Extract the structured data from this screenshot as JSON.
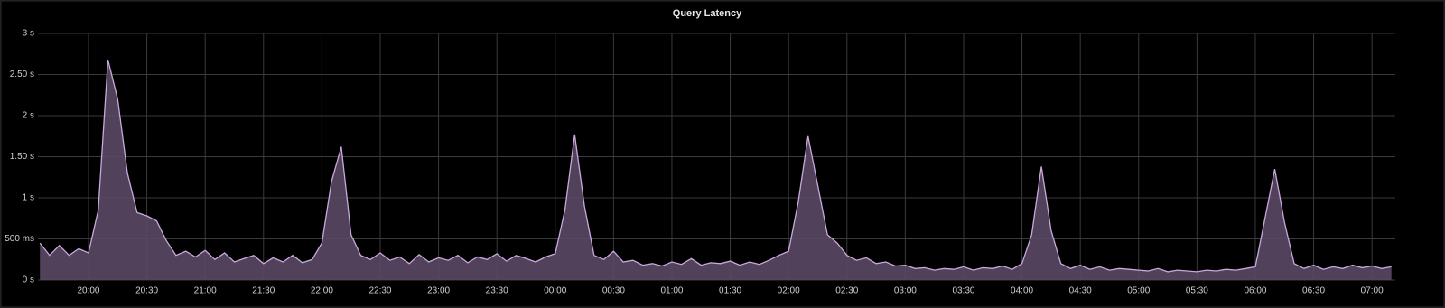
{
  "chart_data": {
    "type": "area",
    "title": "Query Latency",
    "x": [
      "19:35",
      "19:40",
      "19:45",
      "19:50",
      "19:55",
      "20:00",
      "20:05",
      "20:10",
      "20:15",
      "20:20",
      "20:25",
      "20:30",
      "20:35",
      "20:40",
      "20:45",
      "20:50",
      "20:55",
      "21:00",
      "21:05",
      "21:10",
      "21:15",
      "21:20",
      "21:25",
      "21:30",
      "21:35",
      "21:40",
      "21:45",
      "21:50",
      "21:55",
      "22:00",
      "22:05",
      "22:10",
      "22:15",
      "22:20",
      "22:25",
      "22:30",
      "22:35",
      "22:40",
      "22:45",
      "22:50",
      "22:55",
      "23:00",
      "23:05",
      "23:10",
      "23:15",
      "23:20",
      "23:25",
      "23:30",
      "23:35",
      "23:40",
      "23:45",
      "23:50",
      "23:55",
      "00:00",
      "00:05",
      "00:10",
      "00:15",
      "00:20",
      "00:25",
      "00:30",
      "00:35",
      "00:40",
      "00:45",
      "00:50",
      "00:55",
      "01:00",
      "01:05",
      "01:10",
      "01:15",
      "01:20",
      "01:25",
      "01:30",
      "01:35",
      "01:40",
      "01:45",
      "01:50",
      "01:55",
      "02:00",
      "02:05",
      "02:10",
      "02:15",
      "02:20",
      "02:25",
      "02:30",
      "02:35",
      "02:40",
      "02:45",
      "02:50",
      "02:55",
      "03:00",
      "03:05",
      "03:10",
      "03:15",
      "03:20",
      "03:25",
      "03:30",
      "03:35",
      "03:40",
      "03:45",
      "03:50",
      "03:55",
      "04:00",
      "04:05",
      "04:10",
      "04:15",
      "04:20",
      "04:25",
      "04:30",
      "04:35",
      "04:40",
      "04:45",
      "04:50",
      "04:55",
      "05:00",
      "05:05",
      "05:10",
      "05:15",
      "05:20",
      "05:25",
      "05:30",
      "05:35",
      "05:40",
      "05:45",
      "05:50",
      "05:55",
      "06:00",
      "06:05",
      "06:10",
      "06:15",
      "06:20",
      "06:25",
      "06:30",
      "06:35",
      "06:40",
      "06:45",
      "06:50",
      "06:55",
      "07:00",
      "07:05",
      "07:10"
    ],
    "series": [
      {
        "name": "Query Latency",
        "color": "#c9a9dc",
        "fill": "#5a4864",
        "values": [
          0.45,
          0.3,
          0.42,
          0.3,
          0.38,
          0.33,
          0.85,
          2.68,
          2.2,
          1.3,
          0.82,
          0.78,
          0.72,
          0.48,
          0.3,
          0.35,
          0.28,
          0.36,
          0.25,
          0.33,
          0.22,
          0.26,
          0.3,
          0.2,
          0.27,
          0.22,
          0.3,
          0.21,
          0.25,
          0.45,
          1.2,
          1.62,
          0.55,
          0.3,
          0.25,
          0.33,
          0.24,
          0.28,
          0.2,
          0.31,
          0.22,
          0.27,
          0.24,
          0.3,
          0.21,
          0.28,
          0.25,
          0.32,
          0.23,
          0.3,
          0.26,
          0.22,
          0.28,
          0.32,
          0.85,
          1.77,
          0.9,
          0.3,
          0.25,
          0.35,
          0.22,
          0.24,
          0.18,
          0.2,
          0.17,
          0.22,
          0.19,
          0.26,
          0.18,
          0.21,
          0.2,
          0.23,
          0.18,
          0.22,
          0.19,
          0.24,
          0.3,
          0.35,
          0.95,
          1.75,
          1.15,
          0.55,
          0.45,
          0.3,
          0.24,
          0.27,
          0.2,
          0.22,
          0.17,
          0.18,
          0.14,
          0.15,
          0.12,
          0.14,
          0.13,
          0.16,
          0.12,
          0.15,
          0.14,
          0.17,
          0.13,
          0.2,
          0.55,
          1.38,
          0.6,
          0.2,
          0.14,
          0.18,
          0.13,
          0.16,
          0.12,
          0.14,
          0.13,
          0.12,
          0.11,
          0.14,
          0.1,
          0.12,
          0.11,
          0.1,
          0.12,
          0.11,
          0.13,
          0.12,
          0.14,
          0.16,
          0.75,
          1.35,
          0.7,
          0.2,
          0.14,
          0.18,
          0.13,
          0.16,
          0.14,
          0.18,
          0.15,
          0.17,
          0.14,
          0.16
        ]
      }
    ],
    "xlim": [
      "19:34",
      "07:12"
    ],
    "xticks": [
      "20:00",
      "20:30",
      "21:00",
      "21:30",
      "22:00",
      "22:30",
      "23:00",
      "23:30",
      "00:00",
      "00:30",
      "01:00",
      "01:30",
      "02:00",
      "02:30",
      "03:00",
      "03:30",
      "04:00",
      "04:30",
      "05:00",
      "05:30",
      "06:00",
      "06:30",
      "07:00"
    ],
    "ylim": [
      0,
      3
    ],
    "yticks": [
      {
        "value": 0,
        "label": "0 s"
      },
      {
        "value": 0.5,
        "label": "500 ms"
      },
      {
        "value": 1,
        "label": "1 s"
      },
      {
        "value": 1.5,
        "label": "1.50 s"
      },
      {
        "value": 2,
        "label": "2 s"
      },
      {
        "value": 2.5,
        "label": "2.50 s"
      },
      {
        "value": 3,
        "label": "3 s"
      }
    ],
    "grid": true
  }
}
